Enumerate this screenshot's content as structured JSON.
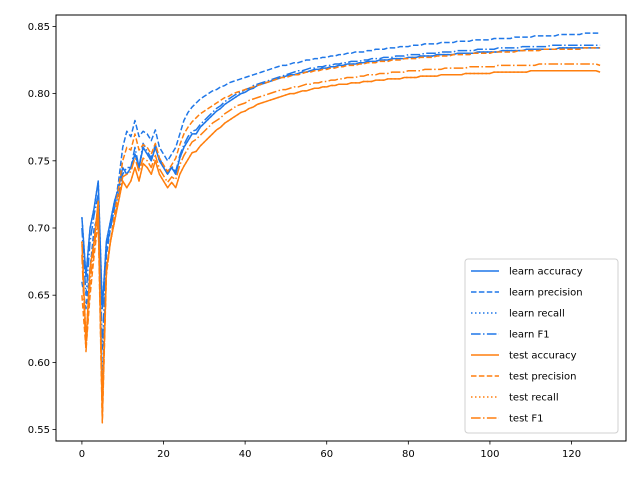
{
  "chart_data": {
    "type": "line",
    "title": "",
    "xlabel": "",
    "ylabel": "",
    "xlim": [
      -6.35,
      133.35
    ],
    "ylim": [
      0.5415,
      0.8585
    ],
    "xticks": [
      0,
      20,
      40,
      60,
      80,
      100,
      120
    ],
    "yticks": [
      0.55,
      0.6,
      0.65,
      0.7,
      0.75,
      0.8,
      0.85
    ],
    "ytick_labels": [
      "0.55",
      "0.60",
      "0.65",
      "0.70",
      "0.75",
      "0.80",
      "0.85"
    ],
    "grid": false,
    "legend": "lower-right",
    "x_points": 128,
    "series": [
      {
        "name": "learn accuracy",
        "color": "#1f77e8",
        "dash": "solid",
        "values": [
          0.708,
          0.664,
          0.7,
          0.715,
          0.735,
          0.64,
          0.69,
          0.705,
          0.72,
          0.73,
          0.745,
          0.74,
          0.745,
          0.755,
          0.745,
          0.76,
          0.755,
          0.75,
          0.76,
          0.75,
          0.745,
          0.74,
          0.745,
          0.74,
          0.752,
          0.76,
          0.765,
          0.77,
          0.77,
          0.775,
          0.778,
          0.781,
          0.784,
          0.787,
          0.789,
          0.792,
          0.794,
          0.796,
          0.798,
          0.8,
          0.801,
          0.803,
          0.804,
          0.806,
          0.807,
          0.808,
          0.809,
          0.81,
          0.811,
          0.812,
          0.813,
          0.814,
          0.814,
          0.815,
          0.816,
          0.816,
          0.817,
          0.818,
          0.818,
          0.819,
          0.819,
          0.82,
          0.82,
          0.821,
          0.821,
          0.822,
          0.822,
          0.822,
          0.823,
          0.823,
          0.824,
          0.824,
          0.824,
          0.825,
          0.825,
          0.825,
          0.826,
          0.826,
          0.826,
          0.826,
          0.827,
          0.827,
          0.827,
          0.828,
          0.828,
          0.828,
          0.828,
          0.829,
          0.829,
          0.829,
          0.829,
          0.829,
          0.83,
          0.83,
          0.83,
          0.83,
          0.83,
          0.831,
          0.831,
          0.831,
          0.831,
          0.831,
          0.831,
          0.832,
          0.832,
          0.832,
          0.832,
          0.832,
          0.832,
          0.833,
          0.833,
          0.833,
          0.833,
          0.833,
          0.833,
          0.833,
          0.833,
          0.834,
          0.834,
          0.834,
          0.834,
          0.834,
          0.834,
          0.834,
          0.834,
          0.834,
          0.834,
          0.834
        ]
      },
      {
        "name": "learn precision",
        "color": "#1f77e8",
        "dash": "dashed",
        "values": [
          0.66,
          0.64,
          0.67,
          0.7,
          0.71,
          0.58,
          0.68,
          0.7,
          0.715,
          0.735,
          0.76,
          0.772,
          0.768,
          0.78,
          0.768,
          0.772,
          0.77,
          0.765,
          0.773,
          0.76,
          0.755,
          0.75,
          0.755,
          0.76,
          0.77,
          0.78,
          0.786,
          0.79,
          0.793,
          0.796,
          0.798,
          0.8,
          0.802,
          0.803,
          0.805,
          0.806,
          0.808,
          0.809,
          0.81,
          0.811,
          0.812,
          0.813,
          0.814,
          0.815,
          0.816,
          0.817,
          0.818,
          0.819,
          0.82,
          0.821,
          0.821,
          0.822,
          0.823,
          0.823,
          0.824,
          0.825,
          0.825,
          0.826,
          0.826,
          0.827,
          0.827,
          0.828,
          0.828,
          0.829,
          0.829,
          0.83,
          0.83,
          0.831,
          0.831,
          0.831,
          0.832,
          0.832,
          0.833,
          0.833,
          0.833,
          0.834,
          0.834,
          0.834,
          0.835,
          0.835,
          0.835,
          0.836,
          0.836,
          0.836,
          0.837,
          0.837,
          0.837,
          0.837,
          0.838,
          0.838,
          0.838,
          0.838,
          0.839,
          0.839,
          0.839,
          0.839,
          0.84,
          0.84,
          0.84,
          0.84,
          0.84,
          0.841,
          0.841,
          0.841,
          0.841,
          0.841,
          0.842,
          0.842,
          0.842,
          0.842,
          0.842,
          0.843,
          0.843,
          0.843,
          0.843,
          0.843,
          0.843,
          0.844,
          0.844,
          0.844,
          0.844,
          0.844,
          0.844,
          0.845,
          0.845,
          0.845,
          0.845,
          0.845
        ]
      },
      {
        "name": "learn recall",
        "color": "#1f77e8",
        "dash": "dotted",
        "values": [
          0.708,
          0.664,
          0.7,
          0.715,
          0.735,
          0.64,
          0.69,
          0.705,
          0.72,
          0.73,
          0.745,
          0.74,
          0.745,
          0.755,
          0.745,
          0.76,
          0.755,
          0.75,
          0.76,
          0.75,
          0.745,
          0.74,
          0.745,
          0.74,
          0.752,
          0.76,
          0.765,
          0.77,
          0.77,
          0.775,
          0.778,
          0.781,
          0.784,
          0.787,
          0.789,
          0.792,
          0.794,
          0.796,
          0.798,
          0.8,
          0.801,
          0.803,
          0.804,
          0.806,
          0.807,
          0.808,
          0.809,
          0.81,
          0.811,
          0.812,
          0.813,
          0.814,
          0.814,
          0.815,
          0.816,
          0.816,
          0.817,
          0.818,
          0.818,
          0.819,
          0.819,
          0.82,
          0.82,
          0.821,
          0.821,
          0.822,
          0.822,
          0.822,
          0.823,
          0.823,
          0.824,
          0.824,
          0.824,
          0.825,
          0.825,
          0.825,
          0.826,
          0.826,
          0.826,
          0.826,
          0.827,
          0.827,
          0.827,
          0.828,
          0.828,
          0.828,
          0.828,
          0.829,
          0.829,
          0.829,
          0.829,
          0.829,
          0.83,
          0.83,
          0.83,
          0.83,
          0.83,
          0.831,
          0.831,
          0.831,
          0.831,
          0.831,
          0.831,
          0.832,
          0.832,
          0.832,
          0.832,
          0.832,
          0.832,
          0.833,
          0.833,
          0.833,
          0.833,
          0.833,
          0.833,
          0.833,
          0.833,
          0.834,
          0.834,
          0.834,
          0.834,
          0.834,
          0.834,
          0.834,
          0.834,
          0.834,
          0.834,
          0.834
        ]
      },
      {
        "name": "learn F1",
        "color": "#1f77e8",
        "dash": "dashdot",
        "values": [
          0.7,
          0.65,
          0.69,
          0.71,
          0.725,
          0.61,
          0.685,
          0.7,
          0.715,
          0.725,
          0.74,
          0.745,
          0.745,
          0.76,
          0.745,
          0.763,
          0.757,
          0.752,
          0.762,
          0.752,
          0.746,
          0.741,
          0.746,
          0.742,
          0.754,
          0.762,
          0.768,
          0.772,
          0.773,
          0.777,
          0.78,
          0.783,
          0.786,
          0.789,
          0.791,
          0.794,
          0.796,
          0.798,
          0.8,
          0.801,
          0.803,
          0.804,
          0.806,
          0.807,
          0.808,
          0.809,
          0.81,
          0.811,
          0.812,
          0.813,
          0.814,
          0.815,
          0.816,
          0.817,
          0.817,
          0.818,
          0.819,
          0.819,
          0.82,
          0.82,
          0.821,
          0.821,
          0.822,
          0.822,
          0.823,
          0.823,
          0.824,
          0.824,
          0.824,
          0.825,
          0.825,
          0.826,
          0.826,
          0.826,
          0.827,
          0.827,
          0.827,
          0.828,
          0.828,
          0.828,
          0.829,
          0.829,
          0.829,
          0.829,
          0.83,
          0.83,
          0.83,
          0.83,
          0.831,
          0.831,
          0.831,
          0.831,
          0.832,
          0.832,
          0.832,
          0.832,
          0.832,
          0.833,
          0.833,
          0.833,
          0.833,
          0.833,
          0.834,
          0.834,
          0.834,
          0.834,
          0.834,
          0.834,
          0.835,
          0.835,
          0.835,
          0.835,
          0.835,
          0.835,
          0.835,
          0.836,
          0.836,
          0.836,
          0.836,
          0.836,
          0.836,
          0.836,
          0.836,
          0.836,
          0.836,
          0.836,
          0.836,
          0.836
        ]
      },
      {
        "name": "test accuracy",
        "color": "#ff7f0e",
        "dash": "solid",
        "values": [
          0.69,
          0.615,
          0.67,
          0.69,
          0.72,
          0.565,
          0.67,
          0.69,
          0.705,
          0.72,
          0.735,
          0.73,
          0.735,
          0.745,
          0.735,
          0.748,
          0.745,
          0.74,
          0.75,
          0.74,
          0.735,
          0.73,
          0.734,
          0.73,
          0.74,
          0.746,
          0.751,
          0.756,
          0.757,
          0.761,
          0.764,
          0.767,
          0.77,
          0.773,
          0.775,
          0.778,
          0.78,
          0.782,
          0.784,
          0.786,
          0.787,
          0.789,
          0.79,
          0.792,
          0.793,
          0.794,
          0.795,
          0.796,
          0.797,
          0.798,
          0.799,
          0.8,
          0.8,
          0.801,
          0.802,
          0.802,
          0.803,
          0.804,
          0.804,
          0.805,
          0.805,
          0.806,
          0.806,
          0.807,
          0.807,
          0.807,
          0.808,
          0.808,
          0.808,
          0.809,
          0.809,
          0.809,
          0.81,
          0.81,
          0.81,
          0.811,
          0.811,
          0.811,
          0.811,
          0.812,
          0.812,
          0.812,
          0.812,
          0.813,
          0.813,
          0.813,
          0.813,
          0.813,
          0.814,
          0.814,
          0.814,
          0.814,
          0.814,
          0.814,
          0.815,
          0.815,
          0.815,
          0.815,
          0.815,
          0.815,
          0.815,
          0.816,
          0.816,
          0.816,
          0.816,
          0.816,
          0.816,
          0.816,
          0.816,
          0.816,
          0.817,
          0.817,
          0.817,
          0.817,
          0.817,
          0.817,
          0.817,
          0.817,
          0.817,
          0.817,
          0.817,
          0.817,
          0.817,
          0.817,
          0.817,
          0.817,
          0.817,
          0.816
        ]
      },
      {
        "name": "test precision",
        "color": "#ff7f0e",
        "dash": "dashed",
        "values": [
          0.65,
          0.61,
          0.65,
          0.68,
          0.705,
          0.555,
          0.665,
          0.69,
          0.71,
          0.73,
          0.75,
          0.76,
          0.758,
          0.77,
          0.758,
          0.762,
          0.76,
          0.755,
          0.763,
          0.752,
          0.747,
          0.742,
          0.747,
          0.752,
          0.762,
          0.77,
          0.775,
          0.779,
          0.782,
          0.785,
          0.787,
          0.789,
          0.791,
          0.793,
          0.795,
          0.797,
          0.798,
          0.8,
          0.801,
          0.802,
          0.803,
          0.804,
          0.805,
          0.806,
          0.807,
          0.808,
          0.809,
          0.81,
          0.811,
          0.812,
          0.812,
          0.813,
          0.814,
          0.814,
          0.815,
          0.816,
          0.816,
          0.817,
          0.817,
          0.818,
          0.818,
          0.819,
          0.819,
          0.82,
          0.82,
          0.821,
          0.821,
          0.821,
          0.822,
          0.822,
          0.823,
          0.823,
          0.823,
          0.824,
          0.824,
          0.824,
          0.825,
          0.825,
          0.825,
          0.826,
          0.826,
          0.826,
          0.826,
          0.827,
          0.827,
          0.827,
          0.827,
          0.828,
          0.828,
          0.828,
          0.828,
          0.829,
          0.829,
          0.829,
          0.829,
          0.829,
          0.83,
          0.83,
          0.83,
          0.83,
          0.83,
          0.831,
          0.831,
          0.831,
          0.831,
          0.831,
          0.831,
          0.832,
          0.832,
          0.832,
          0.832,
          0.832,
          0.832,
          0.833,
          0.833,
          0.833,
          0.833,
          0.833,
          0.833,
          0.833,
          0.833,
          0.833,
          0.833,
          0.834,
          0.834,
          0.834,
          0.834,
          0.834
        ]
      },
      {
        "name": "test recall",
        "color": "#ff7f0e",
        "dash": "dotted",
        "values": [
          0.69,
          0.615,
          0.67,
          0.69,
          0.72,
          0.565,
          0.67,
          0.69,
          0.705,
          0.72,
          0.735,
          0.73,
          0.735,
          0.745,
          0.735,
          0.748,
          0.745,
          0.74,
          0.75,
          0.74,
          0.735,
          0.73,
          0.734,
          0.73,
          0.74,
          0.746,
          0.751,
          0.756,
          0.757,
          0.761,
          0.764,
          0.767,
          0.77,
          0.773,
          0.775,
          0.778,
          0.78,
          0.782,
          0.784,
          0.786,
          0.787,
          0.789,
          0.79,
          0.792,
          0.793,
          0.794,
          0.795,
          0.796,
          0.797,
          0.798,
          0.799,
          0.8,
          0.8,
          0.801,
          0.802,
          0.802,
          0.803,
          0.804,
          0.804,
          0.805,
          0.805,
          0.806,
          0.806,
          0.807,
          0.807,
          0.807,
          0.808,
          0.808,
          0.808,
          0.809,
          0.809,
          0.809,
          0.81,
          0.81,
          0.81,
          0.811,
          0.811,
          0.811,
          0.811,
          0.812,
          0.812,
          0.812,
          0.812,
          0.813,
          0.813,
          0.813,
          0.813,
          0.813,
          0.814,
          0.814,
          0.814,
          0.814,
          0.814,
          0.814,
          0.815,
          0.815,
          0.815,
          0.815,
          0.815,
          0.815,
          0.815,
          0.816,
          0.816,
          0.816,
          0.816,
          0.816,
          0.816,
          0.816,
          0.816,
          0.816,
          0.817,
          0.817,
          0.817,
          0.817,
          0.817,
          0.817,
          0.817,
          0.817,
          0.817,
          0.817,
          0.817,
          0.817,
          0.817,
          0.817,
          0.817,
          0.817,
          0.817,
          0.816
        ]
      },
      {
        "name": "test F1",
        "color": "#ff7f0e",
        "dash": "dashdot",
        "values": [
          0.68,
          0.608,
          0.66,
          0.685,
          0.712,
          0.558,
          0.667,
          0.69,
          0.705,
          0.722,
          0.738,
          0.74,
          0.742,
          0.752,
          0.742,
          0.752,
          0.75,
          0.745,
          0.754,
          0.744,
          0.739,
          0.734,
          0.738,
          0.736,
          0.747,
          0.754,
          0.759,
          0.764,
          0.766,
          0.769,
          0.772,
          0.775,
          0.778,
          0.78,
          0.782,
          0.785,
          0.787,
          0.789,
          0.791,
          0.792,
          0.793,
          0.795,
          0.796,
          0.797,
          0.798,
          0.799,
          0.8,
          0.801,
          0.802,
          0.803,
          0.803,
          0.804,
          0.805,
          0.805,
          0.806,
          0.807,
          0.807,
          0.808,
          0.808,
          0.809,
          0.809,
          0.81,
          0.81,
          0.811,
          0.811,
          0.812,
          0.812,
          0.812,
          0.813,
          0.813,
          0.814,
          0.814,
          0.814,
          0.815,
          0.815,
          0.815,
          0.816,
          0.816,
          0.816,
          0.816,
          0.817,
          0.817,
          0.817,
          0.817,
          0.818,
          0.818,
          0.818,
          0.818,
          0.818,
          0.819,
          0.819,
          0.819,
          0.819,
          0.819,
          0.819,
          0.82,
          0.82,
          0.82,
          0.82,
          0.82,
          0.82,
          0.82,
          0.821,
          0.821,
          0.821,
          0.821,
          0.821,
          0.821,
          0.821,
          0.821,
          0.821,
          0.821,
          0.822,
          0.822,
          0.822,
          0.822,
          0.822,
          0.822,
          0.822,
          0.822,
          0.822,
          0.822,
          0.822,
          0.822,
          0.822,
          0.822,
          0.822,
          0.821
        ]
      }
    ]
  }
}
